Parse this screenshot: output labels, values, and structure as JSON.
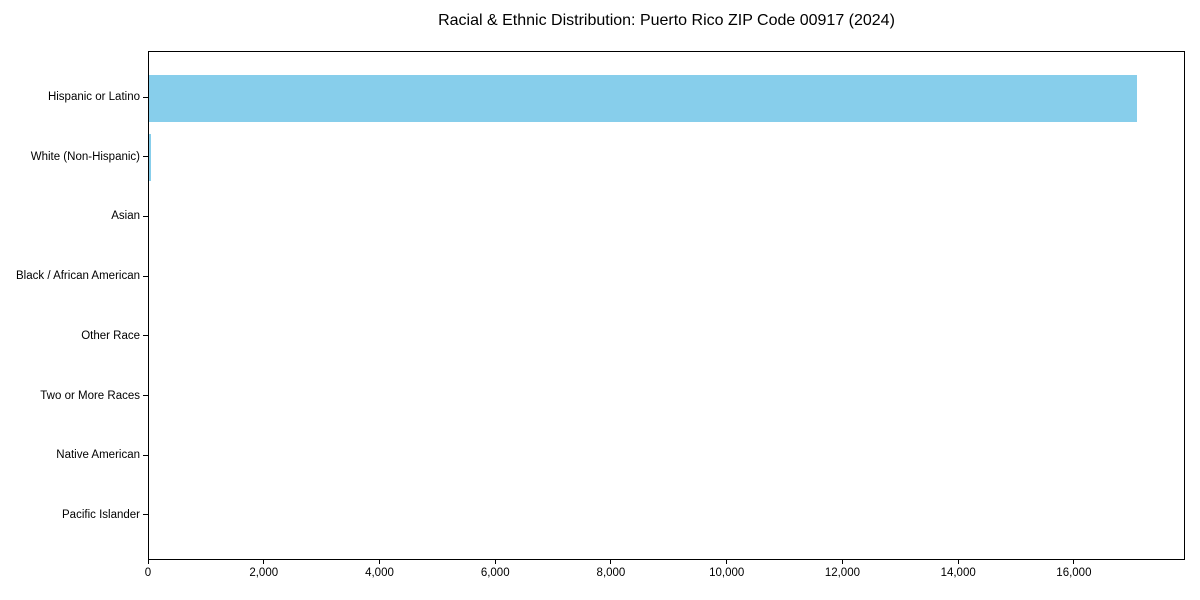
{
  "chart_data": {
    "type": "bar",
    "orientation": "horizontal",
    "title": "Racial & Ethnic Distribution: Puerto Rico ZIP Code 00917 (2024)",
    "xlabel": "",
    "ylabel": "",
    "categories": [
      "Hispanic or Latino",
      "White (Non-Hispanic)",
      "Asian",
      "Black / African American",
      "Other Race",
      "Two or More Races",
      "Native American",
      "Pacific Islander"
    ],
    "values": [
      17070,
      40,
      0,
      0,
      0,
      0,
      0,
      0
    ],
    "xlim": [
      0,
      17920
    ],
    "xticks": {
      "values": [
        0,
        2000,
        4000,
        6000,
        8000,
        10000,
        12000,
        14000,
        16000
      ],
      "labels": [
        "0",
        "2,000",
        "4,000",
        "6,000",
        "8,000",
        "10,000",
        "12,000",
        "14,000",
        "16,000"
      ]
    },
    "bar_color": "#87CEEB",
    "axis_color": "#000000",
    "background_color": "#ffffff",
    "grid": false,
    "legend": null
  }
}
